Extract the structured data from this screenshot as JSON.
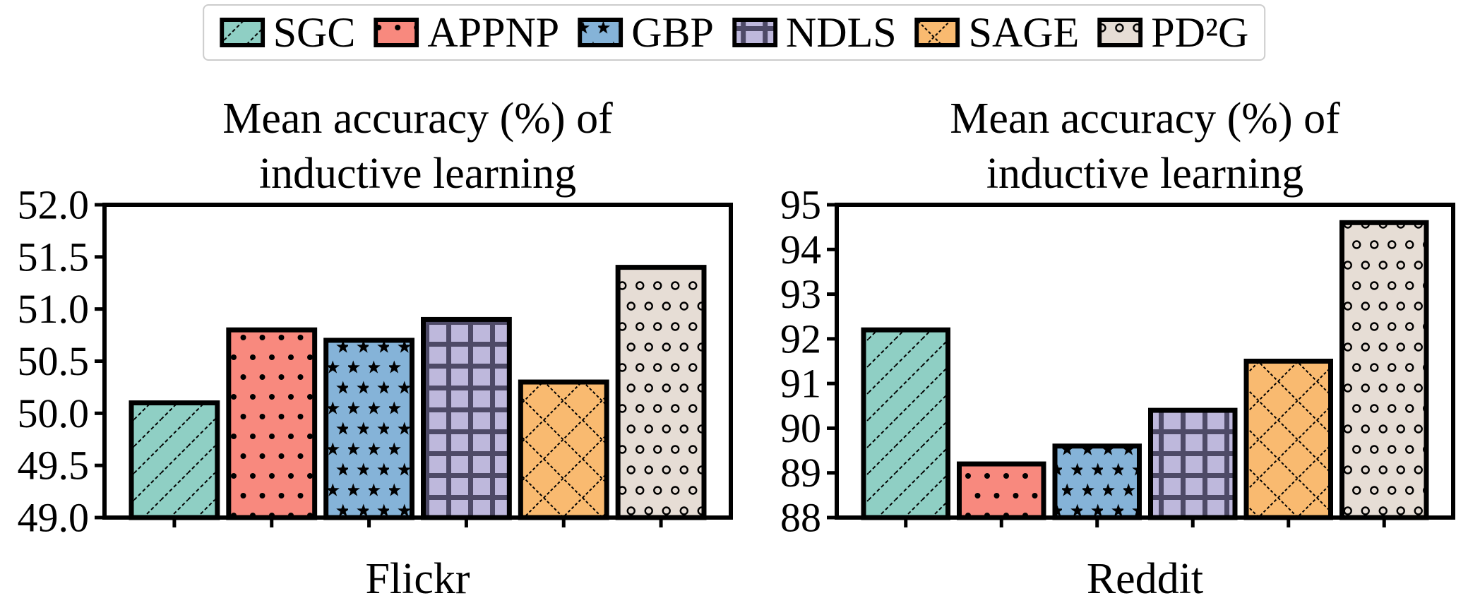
{
  "figure": {
    "background": "#ffffff",
    "text_color": "#000000",
    "axis_color": "#000000"
  },
  "legend": {
    "border_color": "#cccccc",
    "items": [
      {
        "label": "SGC",
        "color": "#8FCFC4",
        "hatch": "diagonal-hatch",
        "hatch_color": "#000000"
      },
      {
        "label": "APPNP",
        "color": "#F8897E",
        "hatch": "dot-hatch",
        "hatch_color": "#000000"
      },
      {
        "label": "GBP",
        "color": "#85B3D8",
        "hatch": "star-hatch",
        "hatch_color": "#000000"
      },
      {
        "label": "NDLS",
        "color": "#BEB8DC",
        "hatch": "grid-hatch",
        "hatch_color": "#4E4A67"
      },
      {
        "label": "SAGE",
        "color": "#F9BA70",
        "hatch": "cross-hatch",
        "hatch_color": "#000000"
      },
      {
        "label": "PD²G",
        "color": "#E6DDD5",
        "hatch": "circle-hatch",
        "hatch_color": "#000000"
      }
    ]
  },
  "chart_data": [
    {
      "type": "bar",
      "title_line1": "Mean accuracy (%) of",
      "title_line2": "inductive learning",
      "xlabel": "Flickr",
      "categories": [
        "SGC",
        "APPNP",
        "GBP",
        "NDLS",
        "SAGE",
        "PD²G"
      ],
      "values": [
        50.1,
        50.8,
        50.7,
        50.9,
        50.3,
        51.4
      ],
      "ylim": [
        49.0,
        52.0
      ],
      "ytick_step": 0.5,
      "ytick_decimals": 1,
      "grid": false,
      "legend_position": "shared-top-center"
    },
    {
      "type": "bar",
      "title_line1": "Mean accuracy (%) of",
      "title_line2": "inductive learning",
      "xlabel": "Reddit",
      "categories": [
        "SGC",
        "APPNP",
        "GBP",
        "NDLS",
        "SAGE",
        "PD²G"
      ],
      "values": [
        92.2,
        89.2,
        89.6,
        90.4,
        91.5,
        94.6
      ],
      "ylim": [
        88,
        95
      ],
      "ytick_step": 1,
      "ytick_decimals": 0,
      "grid": false,
      "legend_position": "shared-top-center"
    }
  ]
}
